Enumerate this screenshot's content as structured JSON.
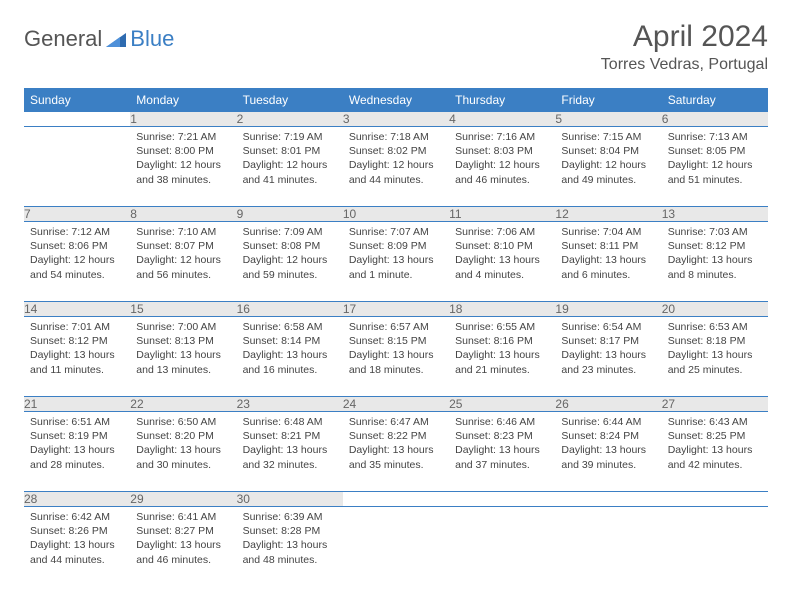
{
  "logo": {
    "text1": "General",
    "text2": "Blue",
    "text1_color": "#555555",
    "text2_color": "#3b7fc4"
  },
  "title": "April 2024",
  "location": "Torres Vedras, Portugal",
  "colors": {
    "header_bg": "#3b7fc4",
    "daynum_bg": "#e8e8e8",
    "rule": "#3b7fc4",
    "text": "#444444"
  },
  "weekdays": [
    "Sunday",
    "Monday",
    "Tuesday",
    "Wednesday",
    "Thursday",
    "Friday",
    "Saturday"
  ],
  "weeks": [
    {
      "nums": [
        "",
        "1",
        "2",
        "3",
        "4",
        "5",
        "6"
      ],
      "cells": [
        null,
        {
          "sunrise": "7:21 AM",
          "sunset": "8:00 PM",
          "daylight": "12 hours and 38 minutes."
        },
        {
          "sunrise": "7:19 AM",
          "sunset": "8:01 PM",
          "daylight": "12 hours and 41 minutes."
        },
        {
          "sunrise": "7:18 AM",
          "sunset": "8:02 PM",
          "daylight": "12 hours and 44 minutes."
        },
        {
          "sunrise": "7:16 AM",
          "sunset": "8:03 PM",
          "daylight": "12 hours and 46 minutes."
        },
        {
          "sunrise": "7:15 AM",
          "sunset": "8:04 PM",
          "daylight": "12 hours and 49 minutes."
        },
        {
          "sunrise": "7:13 AM",
          "sunset": "8:05 PM",
          "daylight": "12 hours and 51 minutes."
        }
      ]
    },
    {
      "nums": [
        "7",
        "8",
        "9",
        "10",
        "11",
        "12",
        "13"
      ],
      "cells": [
        {
          "sunrise": "7:12 AM",
          "sunset": "8:06 PM",
          "daylight": "12 hours and 54 minutes."
        },
        {
          "sunrise": "7:10 AM",
          "sunset": "8:07 PM",
          "daylight": "12 hours and 56 minutes."
        },
        {
          "sunrise": "7:09 AM",
          "sunset": "8:08 PM",
          "daylight": "12 hours and 59 minutes."
        },
        {
          "sunrise": "7:07 AM",
          "sunset": "8:09 PM",
          "daylight": "13 hours and 1 minute."
        },
        {
          "sunrise": "7:06 AM",
          "sunset": "8:10 PM",
          "daylight": "13 hours and 4 minutes."
        },
        {
          "sunrise": "7:04 AM",
          "sunset": "8:11 PM",
          "daylight": "13 hours and 6 minutes."
        },
        {
          "sunrise": "7:03 AM",
          "sunset": "8:12 PM",
          "daylight": "13 hours and 8 minutes."
        }
      ]
    },
    {
      "nums": [
        "14",
        "15",
        "16",
        "17",
        "18",
        "19",
        "20"
      ],
      "cells": [
        {
          "sunrise": "7:01 AM",
          "sunset": "8:12 PM",
          "daylight": "13 hours and 11 minutes."
        },
        {
          "sunrise": "7:00 AM",
          "sunset": "8:13 PM",
          "daylight": "13 hours and 13 minutes."
        },
        {
          "sunrise": "6:58 AM",
          "sunset": "8:14 PM",
          "daylight": "13 hours and 16 minutes."
        },
        {
          "sunrise": "6:57 AM",
          "sunset": "8:15 PM",
          "daylight": "13 hours and 18 minutes."
        },
        {
          "sunrise": "6:55 AM",
          "sunset": "8:16 PM",
          "daylight": "13 hours and 21 minutes."
        },
        {
          "sunrise": "6:54 AM",
          "sunset": "8:17 PM",
          "daylight": "13 hours and 23 minutes."
        },
        {
          "sunrise": "6:53 AM",
          "sunset": "8:18 PM",
          "daylight": "13 hours and 25 minutes."
        }
      ]
    },
    {
      "nums": [
        "21",
        "22",
        "23",
        "24",
        "25",
        "26",
        "27"
      ],
      "cells": [
        {
          "sunrise": "6:51 AM",
          "sunset": "8:19 PM",
          "daylight": "13 hours and 28 minutes."
        },
        {
          "sunrise": "6:50 AM",
          "sunset": "8:20 PM",
          "daylight": "13 hours and 30 minutes."
        },
        {
          "sunrise": "6:48 AM",
          "sunset": "8:21 PM",
          "daylight": "13 hours and 32 minutes."
        },
        {
          "sunrise": "6:47 AM",
          "sunset": "8:22 PM",
          "daylight": "13 hours and 35 minutes."
        },
        {
          "sunrise": "6:46 AM",
          "sunset": "8:23 PM",
          "daylight": "13 hours and 37 minutes."
        },
        {
          "sunrise": "6:44 AM",
          "sunset": "8:24 PM",
          "daylight": "13 hours and 39 minutes."
        },
        {
          "sunrise": "6:43 AM",
          "sunset": "8:25 PM",
          "daylight": "13 hours and 42 minutes."
        }
      ]
    },
    {
      "nums": [
        "28",
        "29",
        "30",
        "",
        "",
        "",
        ""
      ],
      "cells": [
        {
          "sunrise": "6:42 AM",
          "sunset": "8:26 PM",
          "daylight": "13 hours and 44 minutes."
        },
        {
          "sunrise": "6:41 AM",
          "sunset": "8:27 PM",
          "daylight": "13 hours and 46 minutes."
        },
        {
          "sunrise": "6:39 AM",
          "sunset": "8:28 PM",
          "daylight": "13 hours and 48 minutes."
        },
        null,
        null,
        null,
        null
      ]
    }
  ]
}
